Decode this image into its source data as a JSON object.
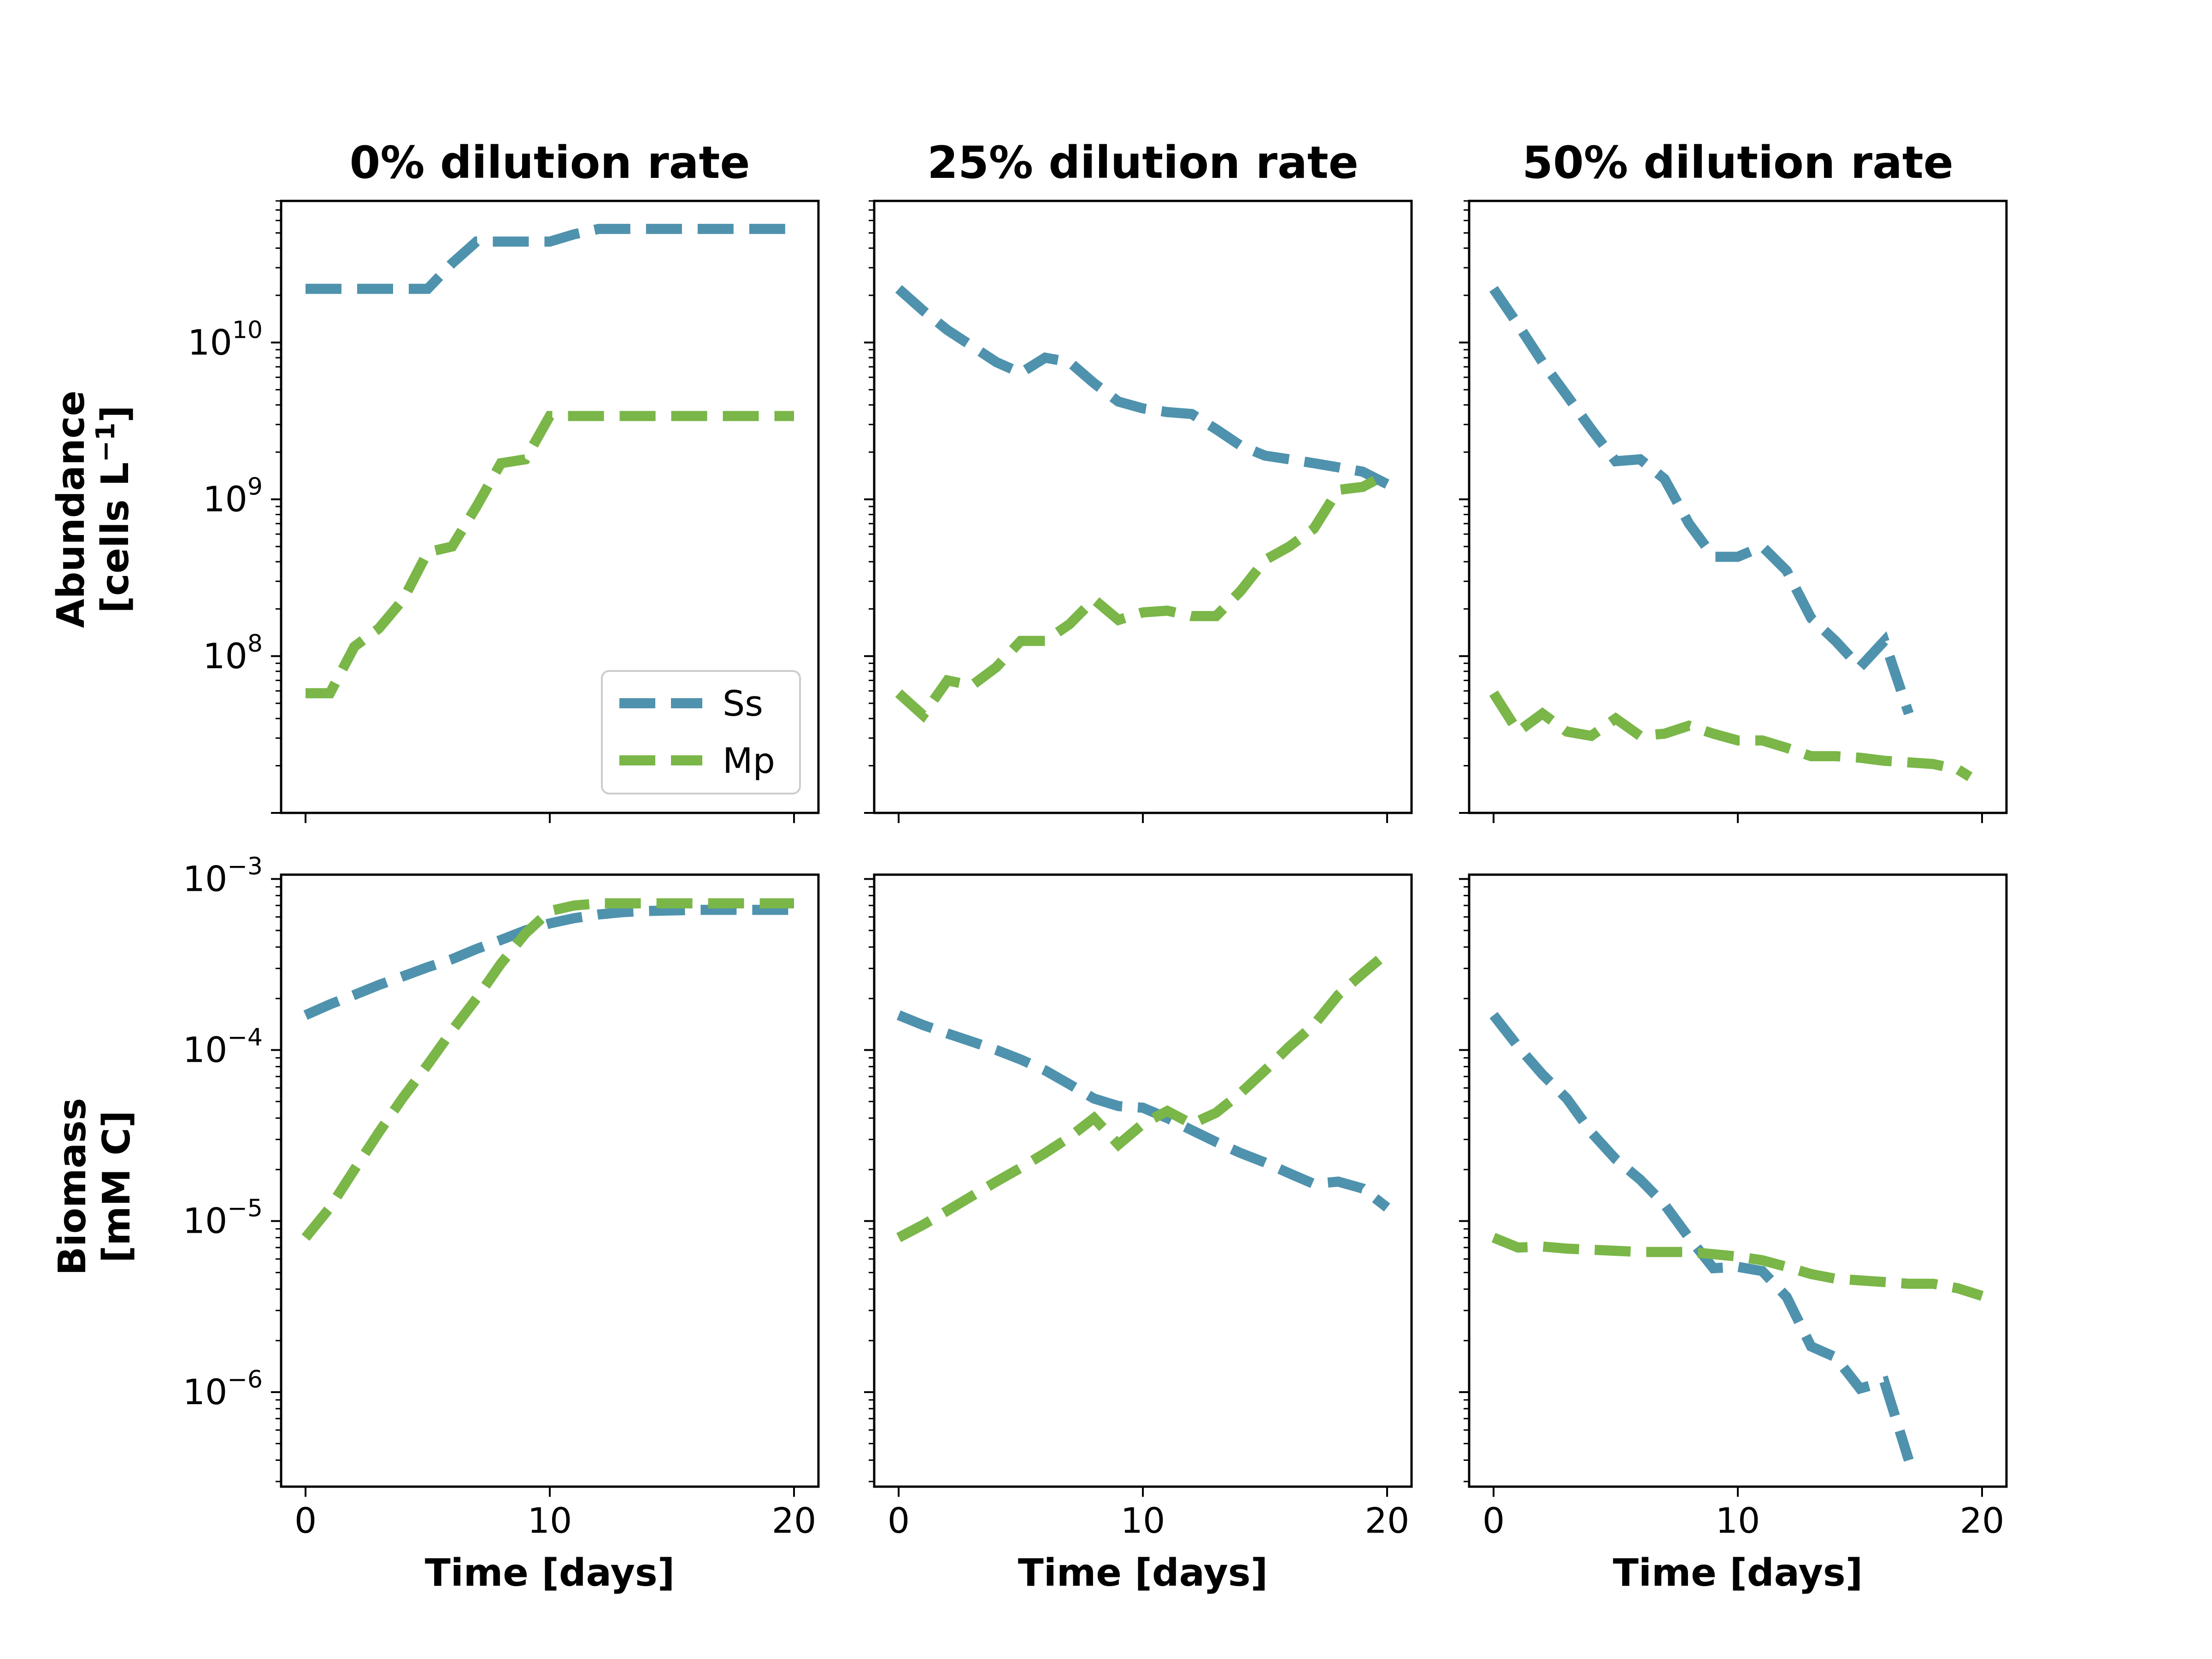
{
  "colors": {
    "Ss": "#4f92ad",
    "Mp": "#7ab648"
  },
  "figure": {
    "row_labels": [
      {
        "line1": "Abundance",
        "line2": "[cells L",
        "line2_sup": "−1",
        "line2_end": "]"
      },
      {
        "line1": "Biomass",
        "line2": "[mM C]",
        "line2_sup": "",
        "line2_end": ""
      }
    ]
  },
  "chart_data": [
    {
      "type": "line",
      "title": "0% dilution rate",
      "xlabel": "",
      "ylabel": "Abundance [cells L⁻¹]",
      "xlim": [
        -1,
        21
      ],
      "xticks": [
        0,
        10,
        20
      ],
      "yscale": "log",
      "ylim": [
        10000000.0,
        80000000000.0
      ],
      "yticks": [
        {
          "value": 100000000.0,
          "base": "10",
          "exp": "8"
        },
        {
          "value": 1000000000.0,
          "base": "10",
          "exp": "9"
        },
        {
          "value": 10000000000.0,
          "base": "10",
          "exp": "10"
        }
      ],
      "legend": {
        "placement": "lower-right",
        "entries": [
          "Ss",
          "Mp"
        ]
      },
      "series": [
        {
          "name": "Ss",
          "x": [
            0,
            1,
            2,
            3,
            4,
            5,
            6,
            7,
            8,
            9,
            10,
            11,
            12,
            13,
            14,
            15,
            16,
            17,
            18,
            19,
            20
          ],
          "y": [
            22000000000.0,
            22000000000.0,
            22000000000.0,
            22000000000.0,
            22000000000.0,
            22000000000.0,
            32000000000.0,
            44000000000.0,
            44000000000.0,
            44000000000.0,
            44000000000.0,
            49000000000.0,
            53000000000.0,
            53000000000.0,
            53000000000.0,
            53000000000.0,
            53000000000.0,
            53000000000.0,
            53000000000.0,
            53000000000.0,
            53000000000.0
          ]
        },
        {
          "name": "Mp",
          "x": [
            0,
            1,
            2,
            3,
            4,
            5,
            6,
            7,
            8,
            9,
            10,
            11,
            12,
            13,
            14,
            15,
            16,
            17,
            18,
            19,
            20
          ],
          "y": [
            58000000.0,
            58000000.0,
            115000000.0,
            150000000.0,
            230000000.0,
            460000000.0,
            500000000.0,
            900000000.0,
            1700000000.0,
            1800000000.0,
            3400000000.0,
            3400000000.0,
            3400000000.0,
            3400000000.0,
            3400000000.0,
            3400000000.0,
            3400000000.0,
            3400000000.0,
            3400000000.0,
            3400000000.0,
            3400000000.0
          ]
        }
      ]
    },
    {
      "type": "line",
      "title": "25% dilution rate",
      "xlabel": "",
      "ylabel": "",
      "xlim": [
        -1,
        21
      ],
      "xticks": [
        0,
        10,
        20
      ],
      "yscale": "log",
      "ylim": [
        10000000.0,
        80000000000.0
      ],
      "yticks": [],
      "series": [
        {
          "name": "Ss",
          "x": [
            0,
            1,
            2,
            3,
            4,
            5,
            6,
            7,
            8,
            9,
            10,
            11,
            12,
            13,
            14,
            15,
            16,
            17,
            18,
            19,
            20
          ],
          "y": [
            22000000000.0,
            16000000000.0,
            12000000000.0,
            9500000000.0,
            7500000000.0,
            6400000000.0,
            8000000000.0,
            7500000000.0,
            5500000000.0,
            4200000000.0,
            3800000000.0,
            3600000000.0,
            3500000000.0,
            2800000000.0,
            2200000000.0,
            1900000000.0,
            1800000000.0,
            1700000000.0,
            1600000000.0,
            1500000000.0,
            1250000000.0
          ]
        },
        {
          "name": "Mp",
          "x": [
            0,
            1,
            2,
            3,
            4,
            5,
            6,
            7,
            8,
            9,
            10,
            11,
            12,
            13,
            14,
            15,
            16,
            17,
            18,
            19,
            20
          ],
          "y": [
            58000000.0,
            42000000.0,
            70000000.0,
            65000000.0,
            85000000.0,
            125000000.0,
            125000000.0,
            160000000.0,
            230000000.0,
            170000000.0,
            190000000.0,
            195000000.0,
            180000000.0,
            180000000.0,
            260000000.0,
            410000000.0,
            500000000.0,
            650000000.0,
            1150000000.0,
            1200000000.0,
            1450000000.0
          ]
        }
      ]
    },
    {
      "type": "line",
      "title": "50% dilution rate",
      "xlabel": "",
      "ylabel": "",
      "xlim": [
        -1,
        21
      ],
      "xticks": [
        0,
        10,
        20
      ],
      "yscale": "log",
      "ylim": [
        10000000.0,
        80000000000.0
      ],
      "yticks": [],
      "series": [
        {
          "name": "Ss",
          "x": [
            0,
            1,
            2,
            3,
            4,
            5,
            6,
            7,
            8,
            9,
            10,
            11,
            12,
            13,
            14,
            15,
            16,
            17
          ],
          "y": [
            22000000000.0,
            13000000000.0,
            7500000000.0,
            4600000000.0,
            2800000000.0,
            1750000000.0,
            1800000000.0,
            1350000000.0,
            700000000.0,
            430000000.0,
            430000000.0,
            500000000.0,
            350000000.0,
            175000000.0,
            125000000.0,
            85000000.0,
            125000000.0,
            43000000.0
          ]
        },
        {
          "name": "Mp",
          "x": [
            0,
            1,
            2,
            3,
            4,
            5,
            6,
            7,
            8,
            9,
            10,
            11,
            12,
            13,
            14,
            15,
            16,
            17,
            18,
            19,
            19.5
          ],
          "y": [
            58000000.0,
            33000000.0,
            43000000.0,
            33000000.0,
            31000000.0,
            40000000.0,
            31000000.0,
            32000000.0,
            36000000.0,
            32000000.0,
            29000000.0,
            29000000.0,
            26000000.0,
            23000000.0,
            23000000.0,
            22500000.0,
            21500000.0,
            21000000.0,
            20500000.0,
            19000000.0,
            17000000.0
          ]
        }
      ]
    },
    {
      "type": "line",
      "title": "",
      "xlabel": "Time [days]",
      "ylabel": "Biomass [mM C]",
      "xlim": [
        -1,
        21
      ],
      "xticks": [
        0,
        10,
        20
      ],
      "yscale": "log",
      "ylim": [
        2.8e-07,
        0.00106
      ],
      "yticks": [
        {
          "value": 1e-06,
          "base": "10",
          "exp": "−6"
        },
        {
          "value": 1e-05,
          "base": "10",
          "exp": "−5"
        },
        {
          "value": 0.0001,
          "base": "10",
          "exp": "−4"
        },
        {
          "value": 0.001,
          "base": "10",
          "exp": "−3"
        }
      ],
      "series": [
        {
          "name": "Ss",
          "x": [
            0,
            1,
            2,
            3,
            4,
            5,
            6,
            7,
            8,
            9,
            10,
            11,
            12,
            13,
            14,
            15,
            16,
            17,
            18,
            19,
            20
          ],
          "y": [
            0.00016,
            0.000185,
            0.00021,
            0.00024,
            0.00027,
            0.000305,
            0.00034,
            0.00039,
            0.00044,
            0.0005,
            0.00055,
            0.00059,
            0.00062,
            0.00064,
            0.00065,
            0.000655,
            0.00066,
            0.00066,
            0.00066,
            0.00066,
            0.00066
          ]
        },
        {
          "name": "Mp",
          "x": [
            0,
            1,
            2,
            3,
            4,
            5,
            6,
            7,
            8,
            9,
            10,
            11,
            12,
            13,
            14,
            15,
            16,
            17,
            18,
            19,
            20
          ],
          "y": [
            8e-06,
            1.2e-05,
            2e-05,
            3.3e-05,
            5.3e-05,
            8.2e-05,
            0.00013,
            0.0002,
            0.00032,
            0.00048,
            0.00065,
            0.0007,
            0.00072,
            0.00072,
            0.00072,
            0.00072,
            0.00072,
            0.00072,
            0.00072,
            0.00072,
            0.00072
          ]
        }
      ]
    },
    {
      "type": "line",
      "title": "",
      "xlabel": "Time [days]",
      "ylabel": "",
      "xlim": [
        -1,
        21
      ],
      "xticks": [
        0,
        10,
        20
      ],
      "yscale": "log",
      "ylim": [
        2.8e-07,
        0.00106
      ],
      "yticks": [],
      "series": [
        {
          "name": "Ss",
          "x": [
            0,
            1,
            2,
            3,
            4,
            5,
            6,
            7,
            8,
            9,
            10,
            11,
            12,
            13,
            14,
            15,
            16,
            17,
            18,
            19,
            20
          ],
          "y": [
            0.00016,
            0.00014,
            0.000125,
            0.000112,
            0.0001,
            8.8e-05,
            7.6e-05,
            6.3e-05,
            5.2e-05,
            4.7e-05,
            4.6e-05,
            4e-05,
            3.4e-05,
            2.9e-05,
            2.5e-05,
            2.2e-05,
            1.9e-05,
            1.65e-05,
            1.7e-05,
            1.55e-05,
            1.2e-05
          ]
        },
        {
          "name": "Mp",
          "x": [
            0,
            1,
            2,
            3,
            4,
            5,
            6,
            7,
            8,
            9,
            10,
            11,
            12,
            13,
            14,
            15,
            16,
            17,
            18,
            19,
            20
          ],
          "y": [
            8e-06,
            9.5e-06,
            1.15e-05,
            1.4e-05,
            1.7e-05,
            2.05e-05,
            2.5e-05,
            3.1e-05,
            4e-05,
            2.8e-05,
            3.7e-05,
            4.4e-05,
            3.7e-05,
            4.3e-05,
            5.6e-05,
            7.6e-05,
            0.000105,
            0.00014,
            0.00021,
            0.00028,
            0.00037
          ]
        }
      ]
    },
    {
      "type": "line",
      "title": "",
      "xlabel": "Time [days]",
      "ylabel": "",
      "xlim": [
        -1,
        21
      ],
      "xticks": [
        0,
        10,
        20
      ],
      "yscale": "log",
      "ylim": [
        2.8e-07,
        0.00106
      ],
      "yticks": [],
      "series": [
        {
          "name": "Ss",
          "x": [
            0,
            1,
            2,
            3,
            4,
            5,
            6,
            7,
            8,
            9,
            10,
            11,
            12,
            13,
            14,
            15,
            16,
            17
          ],
          "y": [
            0.00016,
            0.000105,
            7.2e-05,
            5.2e-05,
            3.3e-05,
            2.3e-05,
            1.75e-05,
            1.25e-05,
            8e-06,
            5.3e-06,
            5.4e-06,
            5.1e-06,
            3.6e-06,
            1.85e-06,
            1.6e-06,
            1.05e-06,
            1.15e-06,
            4e-07
          ]
        },
        {
          "name": "Mp",
          "x": [
            0,
            1,
            2,
            3,
            4,
            5,
            6,
            7,
            8,
            9,
            10,
            11,
            12,
            13,
            14,
            15,
            16,
            17,
            18,
            19,
            20
          ],
          "y": [
            8e-06,
            7e-06,
            7.1e-06,
            6.9e-06,
            6.8e-06,
            6.7e-06,
            6.6e-06,
            6.6e-06,
            6.6e-06,
            6.4e-06,
            6.2e-06,
            5.9e-06,
            5.4e-06,
            4.9e-06,
            4.6e-06,
            4.5e-06,
            4.4e-06,
            4.3e-06,
            4.3e-06,
            4.05e-06,
            3.65e-06
          ]
        }
      ]
    }
  ]
}
